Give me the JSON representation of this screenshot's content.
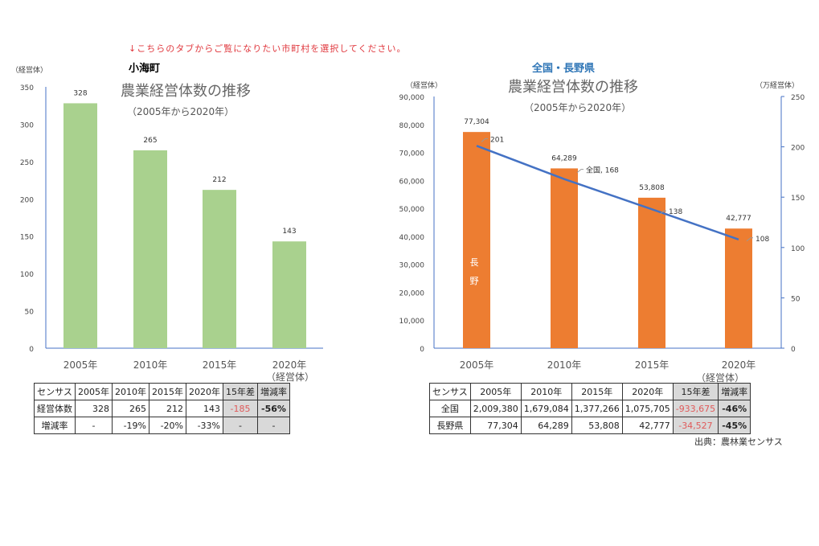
{
  "notice": "↓こちらのタブからご覧になりたい市町村を選択してください。",
  "source": "出典：農林業センサス",
  "chart_data": [
    {
      "type": "bar",
      "region": "小海町",
      "title": "農業経営体数の推移",
      "subtitle": "（2005年から2020年）",
      "ylabel": "（経営体）",
      "ylim": [
        0,
        350
      ],
      "yticks": [
        0,
        50,
        100,
        150,
        200,
        250,
        300,
        350
      ],
      "categories": [
        "2005年",
        "2010年",
        "2015年",
        "2020年"
      ],
      "xlabel": "（経営体）",
      "values": [
        328,
        265,
        212,
        143
      ],
      "color": "#a9d18e"
    },
    {
      "type": "bar+line",
      "region": "全国・長野県",
      "title": "農業経営体数の推移",
      "subtitle": "（2005年から2020年）",
      "ylabel": "（経営体）",
      "y2label": "（万経営体）",
      "ylim": [
        0,
        90000
      ],
      "yticks": [
        "0",
        "10,000",
        "20,000",
        "30,000",
        "40,000",
        "50,000",
        "60,000",
        "70,000",
        "80,000",
        "90,000"
      ],
      "y2lim": [
        0,
        250
      ],
      "y2ticks": [
        0,
        50,
        100,
        150,
        200,
        250
      ],
      "categories": [
        "2005年",
        "2010年",
        "2015年",
        "2020年"
      ],
      "xlabel": "（経営体）",
      "series": [
        {
          "name": "長野",
          "type": "bar",
          "axis": "left",
          "values": [
            77304,
            64289,
            53808,
            42777
          ],
          "labels": [
            "77,304",
            "64,289",
            "53,808",
            "42,777"
          ],
          "color": "#ed7d31"
        },
        {
          "name": "全国",
          "type": "line",
          "axis": "right",
          "values": [
            201,
            168,
            138,
            108
          ],
          "labels": [
            "201",
            "全国, 168",
            "138",
            "108"
          ],
          "color": "#4472c4"
        }
      ]
    }
  ],
  "table_left": {
    "headers": [
      "センサス",
      "2005年",
      "2010年",
      "2015年",
      "2020年",
      "15年差",
      "増減率"
    ],
    "rows": [
      [
        "経営体数",
        "328",
        "265",
        "212",
        "143",
        "-185",
        "-56%"
      ],
      [
        "増減率",
        "-",
        "-19%",
        "-20%",
        "-33%",
        "-",
        "-"
      ]
    ]
  },
  "table_right": {
    "headers": [
      "センサス",
      "2005年",
      "2010年",
      "2015年",
      "2020年",
      "15年差",
      "増減率"
    ],
    "rows": [
      [
        "全国",
        "2,009,380",
        "1,679,084",
        "1,377,266",
        "1,075,705",
        "-933,675",
        "-46%"
      ],
      [
        "長野県",
        "77,304",
        "64,289",
        "53,808",
        "42,777",
        "-34,527",
        "-45%"
      ]
    ]
  }
}
